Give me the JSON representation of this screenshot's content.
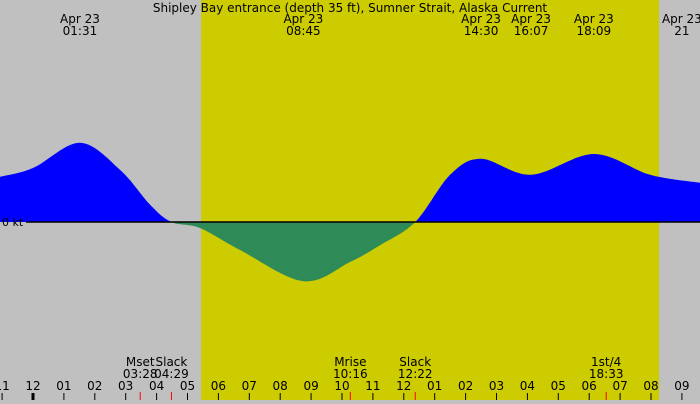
{
  "chart_data": {
    "type": "area",
    "title": "Shipley Bay entrance (depth 35 ft), Sumner Strait, Alaska Current",
    "zero_label": "0 kt",
    "colors": {
      "background": "#c0c0c0",
      "daylight": "#cccc00",
      "flood": "#0000ff",
      "ebb": "#2e8b57",
      "event_tick": "#ff0000"
    },
    "daylight_hours": [
      5.44,
      20.26
    ],
    "x_unit": "hours from midnight Apr 23",
    "x_range": [
      -1.07,
      21.6
    ],
    "points": [
      [
        -1.07,
        1.13
      ],
      [
        0,
        1.35
      ],
      [
        1.52,
        1.98
      ],
      [
        2.82,
        1.3
      ],
      [
        3.79,
        0.43
      ],
      [
        4.48,
        0
      ],
      [
        5.4,
        -0.15
      ],
      [
        6.7,
        -0.7
      ],
      [
        8.75,
        -1.48
      ],
      [
        10.26,
        -1.0
      ],
      [
        11.23,
        -0.58
      ],
      [
        12.37,
        0
      ],
      [
        13.5,
        1.18
      ],
      [
        14.5,
        1.58
      ],
      [
        16.12,
        1.18
      ],
      [
        18.15,
        1.7
      ],
      [
        19.97,
        1.18
      ],
      [
        21.6,
        0.98
      ]
    ],
    "top_labels": [
      {
        "date": "Apr 23",
        "time": "01:31",
        "hour": 1.52
      },
      {
        "date": "Apr 23",
        "time": "08:45",
        "hour": 8.75
      },
      {
        "date": "Apr 23",
        "time": "14:30",
        "hour": 14.5
      },
      {
        "date": "Apr 23",
        "time": "16:07",
        "hour": 16.12
      },
      {
        "date": "Apr 23",
        "time": "18:09",
        "hour": 18.15
      },
      {
        "date": "Apr 23",
        "time": "21",
        "hour": 21.0
      }
    ],
    "events": [
      {
        "label": "Mset",
        "time": "03:28",
        "hour": 3.47
      },
      {
        "label": "Slack",
        "time": "04:29",
        "hour": 4.48
      },
      {
        "label": "Mrise",
        "time": "10:16",
        "hour": 10.27
      },
      {
        "label": "Slack",
        "time": "12:22",
        "hour": 12.37
      },
      {
        "label": "1st/4",
        "time": "18:33",
        "hour": 18.55
      }
    ],
    "hour_ticks": [
      {
        "label": "11",
        "hour": -1
      },
      {
        "label": "12",
        "hour": 0
      },
      {
        "label": "01",
        "hour": 1
      },
      {
        "label": "02",
        "hour": 2
      },
      {
        "label": "03",
        "hour": 3
      },
      {
        "label": "04",
        "hour": 4
      },
      {
        "label": "05",
        "hour": 5
      },
      {
        "label": "06",
        "hour": 6
      },
      {
        "label": "07",
        "hour": 7
      },
      {
        "label": "08",
        "hour": 8
      },
      {
        "label": "09",
        "hour": 9
      },
      {
        "label": "10",
        "hour": 10
      },
      {
        "label": "11",
        "hour": 11
      },
      {
        "label": "12",
        "hour": 12
      },
      {
        "label": "01",
        "hour": 13
      },
      {
        "label": "02",
        "hour": 14
      },
      {
        "label": "03",
        "hour": 15
      },
      {
        "label": "04",
        "hour": 16
      },
      {
        "label": "05",
        "hour": 17
      },
      {
        "label": "06",
        "hour": 18
      },
      {
        "label": "07",
        "hour": 19
      },
      {
        "label": "08",
        "hour": 20
      },
      {
        "label": "09",
        "hour": 21
      }
    ]
  }
}
